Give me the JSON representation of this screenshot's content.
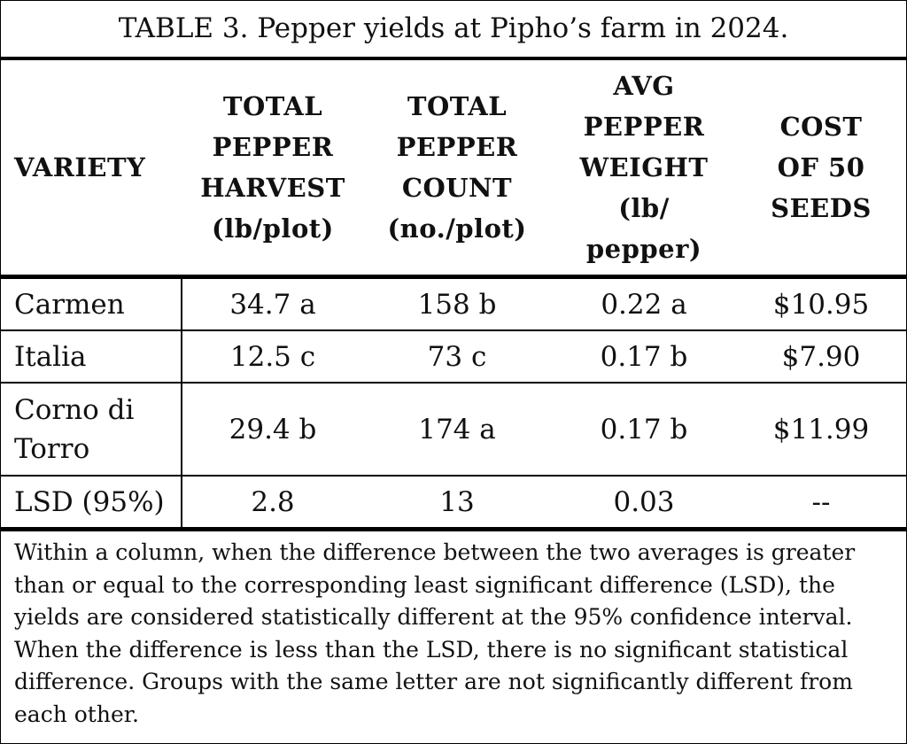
{
  "title": "TABLE 3. Pepper yields at Pipho’s farm in 2024.",
  "columns": [
    "VARIETY",
    "TOTAL\nPEPPER\nHARVEST\n(lb/plot)",
    "TOTAL\nPEPPER\nCOUNT\n(no./plot)",
    "AVG\nPEPPER\nWEIGHT\n(lb/\npepper)",
    "COST\nOF 50\nSEEDS"
  ],
  "rows": [
    [
      "Carmen",
      "34.7 a",
      "158 b",
      "0.22 a",
      "$10.95"
    ],
    [
      "Italia",
      "12.5 c",
      "73 c",
      "0.17 b",
      "$7.90"
    ],
    [
      "Corno di Torro",
      "29.4 b",
      "174 a",
      "0.17 b",
      "$11.99"
    ],
    [
      "LSD (95%)",
      "2.8",
      "13",
      "0.03",
      "--"
    ]
  ],
  "footnote": "Within a column, when the difference between the two averages is greater than or equal to the corresponding least significant difference (LSD), the yields are considered statistically different at the 95% confidence interval. When the difference is less than the LSD, there is no significant statistical difference. Groups with the same letter are not significantly different from each other."
}
